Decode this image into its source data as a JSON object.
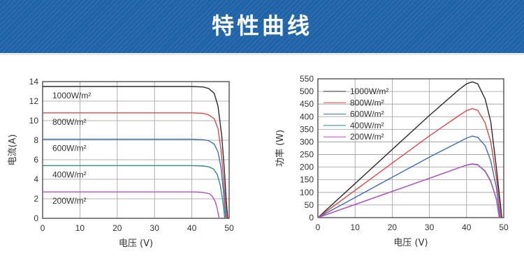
{
  "banner": {
    "title": "特性曲线"
  },
  "chart_data": [
    {
      "type": "line",
      "xlabel": "电压 (V)",
      "ylabel": "电流(A)",
      "xlim": [
        0,
        50
      ],
      "ylim": [
        0,
        14
      ],
      "xticks": [
        "0",
        "10",
        "20",
        "30",
        "40",
        "50"
      ],
      "yticks": [
        "0",
        "2",
        "4",
        "6",
        "8",
        "10",
        "12",
        "14"
      ],
      "grid": true,
      "legend": "inline-left",
      "series": [
        {
          "name": "1000W/m²",
          "color": "#2b2b2b",
          "x": [
            0,
            40,
            43,
            44.5,
            46,
            47,
            48,
            48.7,
            49.2,
            49.6
          ],
          "y": [
            13.5,
            13.5,
            13.45,
            13.3,
            12.8,
            11.5,
            8.5,
            5.0,
            2.0,
            0
          ]
        },
        {
          "name": "800W/m²",
          "color": "#e0474c",
          "x": [
            0,
            40,
            43,
            44.5,
            46,
            47,
            47.8,
            48.5,
            49.0,
            49.4
          ],
          "y": [
            10.8,
            10.8,
            10.75,
            10.6,
            10.2,
            9.2,
            7.0,
            4.0,
            1.6,
            0
          ]
        },
        {
          "name": "600W/m²",
          "color": "#3f6db4",
          "x": [
            0,
            40,
            43,
            44.5,
            46,
            47,
            47.8,
            48.4,
            48.8,
            49.1
          ],
          "y": [
            8.1,
            8.1,
            8.05,
            7.95,
            7.6,
            6.8,
            5.2,
            3.0,
            1.2,
            0
          ]
        },
        {
          "name": "400W/m²",
          "color": "#2f8c7a",
          "x": [
            0,
            40,
            43,
            44.5,
            45.8,
            46.8,
            47.6,
            48.2,
            48.6,
            48.8
          ],
          "y": [
            5.4,
            5.4,
            5.36,
            5.28,
            5.05,
            4.5,
            3.4,
            2.0,
            0.8,
            0
          ]
        },
        {
          "name": "200W/m²",
          "color": "#b44fc0",
          "x": [
            0,
            40,
            42,
            43.5,
            44.8,
            45.6,
            46.3,
            46.8,
            47.1,
            47.3
          ],
          "y": [
            2.7,
            2.7,
            2.68,
            2.62,
            2.5,
            2.2,
            1.7,
            1.0,
            0.4,
            0
          ]
        }
      ]
    },
    {
      "type": "line",
      "xlabel": "电压 (V)",
      "ylabel": "功率 (W)",
      "xlim": [
        0,
        50
      ],
      "ylim": [
        0,
        550
      ],
      "xticks": [
        "0",
        "10",
        "20",
        "30",
        "40",
        "50"
      ],
      "yticks": [
        "0",
        "50",
        "100",
        "150",
        "200",
        "250",
        "300",
        "350",
        "400",
        "450",
        "500",
        "550"
      ],
      "grid": true,
      "legend": "top-left",
      "series": [
        {
          "name": "1000W/m²",
          "color": "#2b2b2b",
          "x": [
            0,
            10,
            20,
            30,
            38,
            40,
            41.5,
            43,
            45,
            46.5,
            48,
            49.5
          ],
          "y": [
            0,
            135,
            270,
            405,
            508,
            530,
            538,
            530,
            470,
            380,
            200,
            0
          ]
        },
        {
          "name": "800W/m²",
          "color": "#e0474c",
          "x": [
            0,
            10,
            20,
            30,
            38,
            40,
            41.5,
            43,
            45,
            46.5,
            48,
            49.3
          ],
          "y": [
            0,
            108,
            216,
            324,
            405,
            424,
            432,
            425,
            375,
            300,
            160,
            0
          ]
        },
        {
          "name": "600W/m²",
          "color": "#3f6db4",
          "x": [
            0,
            10,
            20,
            30,
            38,
            40,
            41.5,
            43,
            45,
            46.5,
            48,
            49.0
          ],
          "y": [
            0,
            80,
            160,
            240,
            300,
            315,
            323,
            318,
            285,
            225,
            120,
            0
          ]
        },
        {
          "name": "400W/m²",
          "color": "#2f8c7a",
          "x": [
            0,
            10,
            20,
            30,
            38,
            40,
            41.5,
            43,
            45,
            46.5,
            48,
            48.8
          ],
          "y": [
            0,
            52,
            104,
            156,
            198,
            208,
            213,
            210,
            185,
            145,
            75,
            0
          ]
        },
        {
          "name": "200W/m²",
          "color": "#b44fc0",
          "x": [
            0,
            10,
            20,
            30,
            38,
            40,
            41.5,
            43,
            45,
            46.5,
            48,
            48.8
          ],
          "y": [
            0,
            52,
            104,
            156,
            198,
            208,
            212,
            209,
            183,
            143,
            73,
            0
          ]
        }
      ]
    }
  ]
}
